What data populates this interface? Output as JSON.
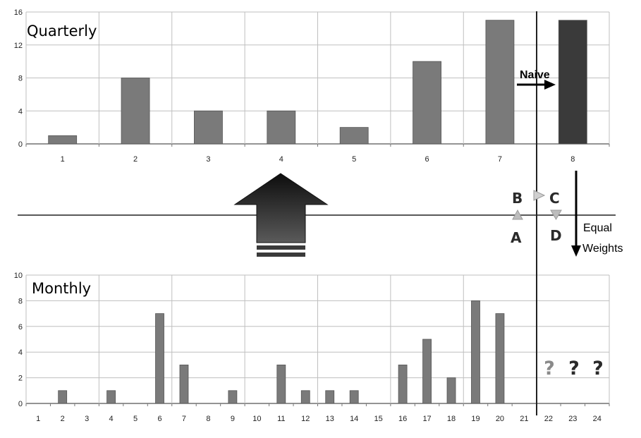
{
  "chart_data": [
    {
      "type": "bar",
      "title": "Quarterly",
      "categories": [
        "1",
        "2",
        "3",
        "4",
        "5",
        "6",
        "7",
        "8"
      ],
      "values": [
        1,
        8,
        4,
        4,
        2,
        10,
        15,
        15
      ],
      "highlight_index": 7,
      "ylim": [
        0,
        16
      ],
      "yticks": [
        "0",
        "4",
        "8",
        "12",
        "16"
      ],
      "grid": true,
      "bar_color": "#7a7a7a",
      "highlight_color": "#3a3a3a"
    },
    {
      "type": "bar",
      "title": "Monthly",
      "categories": [
        "1",
        "2",
        "3",
        "4",
        "5",
        "6",
        "7",
        "8",
        "9",
        "10",
        "11",
        "12",
        "13",
        "14",
        "15",
        "16",
        "17",
        "18",
        "19",
        "20",
        "21",
        "22",
        "23",
        "24"
      ],
      "values": [
        0,
        1,
        0,
        1,
        0,
        7,
        3,
        0,
        1,
        0,
        3,
        1,
        1,
        1,
        0,
        3,
        5,
        2,
        8,
        7,
        0,
        null,
        null,
        null
      ],
      "ylim": [
        0,
        10
      ],
      "yticks": [
        "0",
        "2",
        "4",
        "6",
        "8",
        "10"
      ],
      "grid": true,
      "bar_color": "#7a7a7a"
    }
  ],
  "annotations": {
    "naive_label": "Naive",
    "equal_weights_line1": "Equal",
    "equal_weights_line2": "Weights",
    "letters": {
      "a": "A",
      "b": "B",
      "c": "C",
      "d": "D"
    },
    "unknown_marks": [
      "?",
      "?",
      "?"
    ],
    "unknown_colors": [
      "#8a8a8a",
      "#2a2a2a",
      "#2a2a2a"
    ]
  }
}
